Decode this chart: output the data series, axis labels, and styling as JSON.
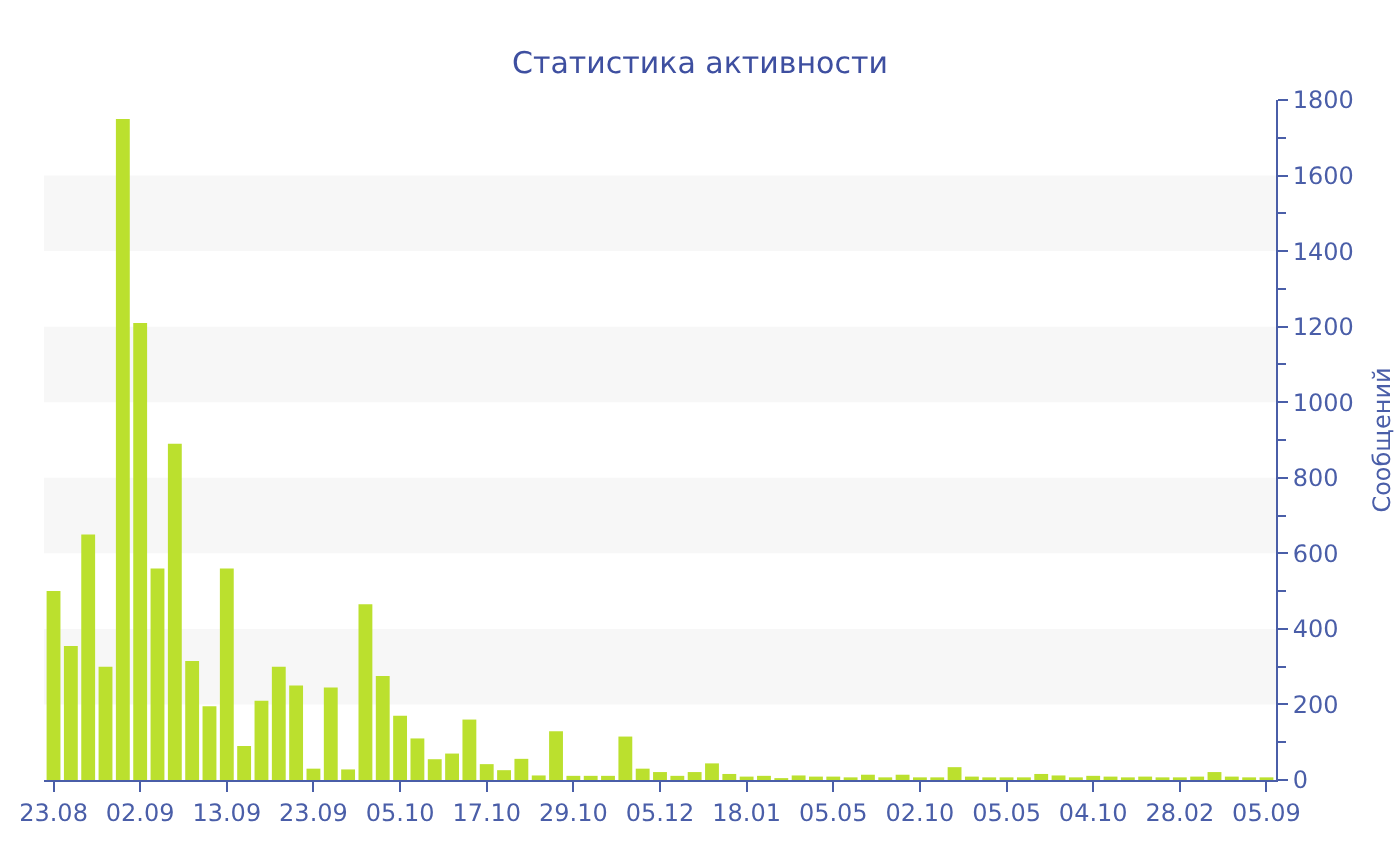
{
  "chart_data": {
    "type": "bar",
    "title": "Статистика активности",
    "ylabel": "Сообщений",
    "categories": [
      "23.08",
      null,
      null,
      null,
      null,
      "02.09",
      null,
      null,
      null,
      null,
      "13.09",
      null,
      null,
      null,
      null,
      "23.09",
      null,
      null,
      null,
      null,
      "05.10",
      null,
      null,
      null,
      null,
      "17.10",
      null,
      null,
      null,
      null,
      "29.10",
      null,
      null,
      null,
      null,
      "05.12",
      null,
      null,
      null,
      null,
      "18.01",
      null,
      null,
      null,
      null,
      "05.05",
      null,
      null,
      null,
      null,
      "02.10",
      null,
      null,
      null,
      null,
      "05.05",
      null,
      null,
      null,
      null,
      "04.10",
      null,
      null,
      null,
      null,
      "28.02",
      null,
      null,
      null,
      null,
      "05.09"
    ],
    "values": [
      500,
      355,
      650,
      300,
      1750,
      1210,
      560,
      890,
      315,
      195,
      560,
      90,
      210,
      300,
      250,
      30,
      245,
      28,
      465,
      275,
      170,
      110,
      55,
      70,
      160,
      42,
      26,
      56,
      12,
      129,
      11,
      11,
      11,
      115,
      30,
      21,
      11,
      21,
      44,
      16,
      9,
      11,
      5,
      12,
      9,
      9,
      7,
      14,
      7,
      14,
      7,
      7,
      34,
      9,
      7,
      7,
      7,
      16,
      12,
      7,
      11,
      9,
      7,
      9,
      7,
      7,
      9,
      21,
      9,
      7,
      7
    ],
    "color": "#bbe02e",
    "ylim": [
      0,
      1800
    ],
    "yticks": [
      0,
      200,
      400,
      600,
      800,
      1000,
      1200,
      1400,
      1600,
      1800
    ],
    "bands": [
      {
        "axis": "y",
        "from": 200,
        "to": 400,
        "color": "#f7f7f7"
      },
      {
        "axis": "y",
        "from": 600,
        "to": 800,
        "color": "#f7f7f7"
      },
      {
        "axis": "y",
        "from": 1000,
        "to": 1200,
        "color": "#f7f7f7"
      },
      {
        "axis": "y",
        "from": 1400,
        "to": 1600,
        "color": "#f7f7f7"
      }
    ]
  }
}
